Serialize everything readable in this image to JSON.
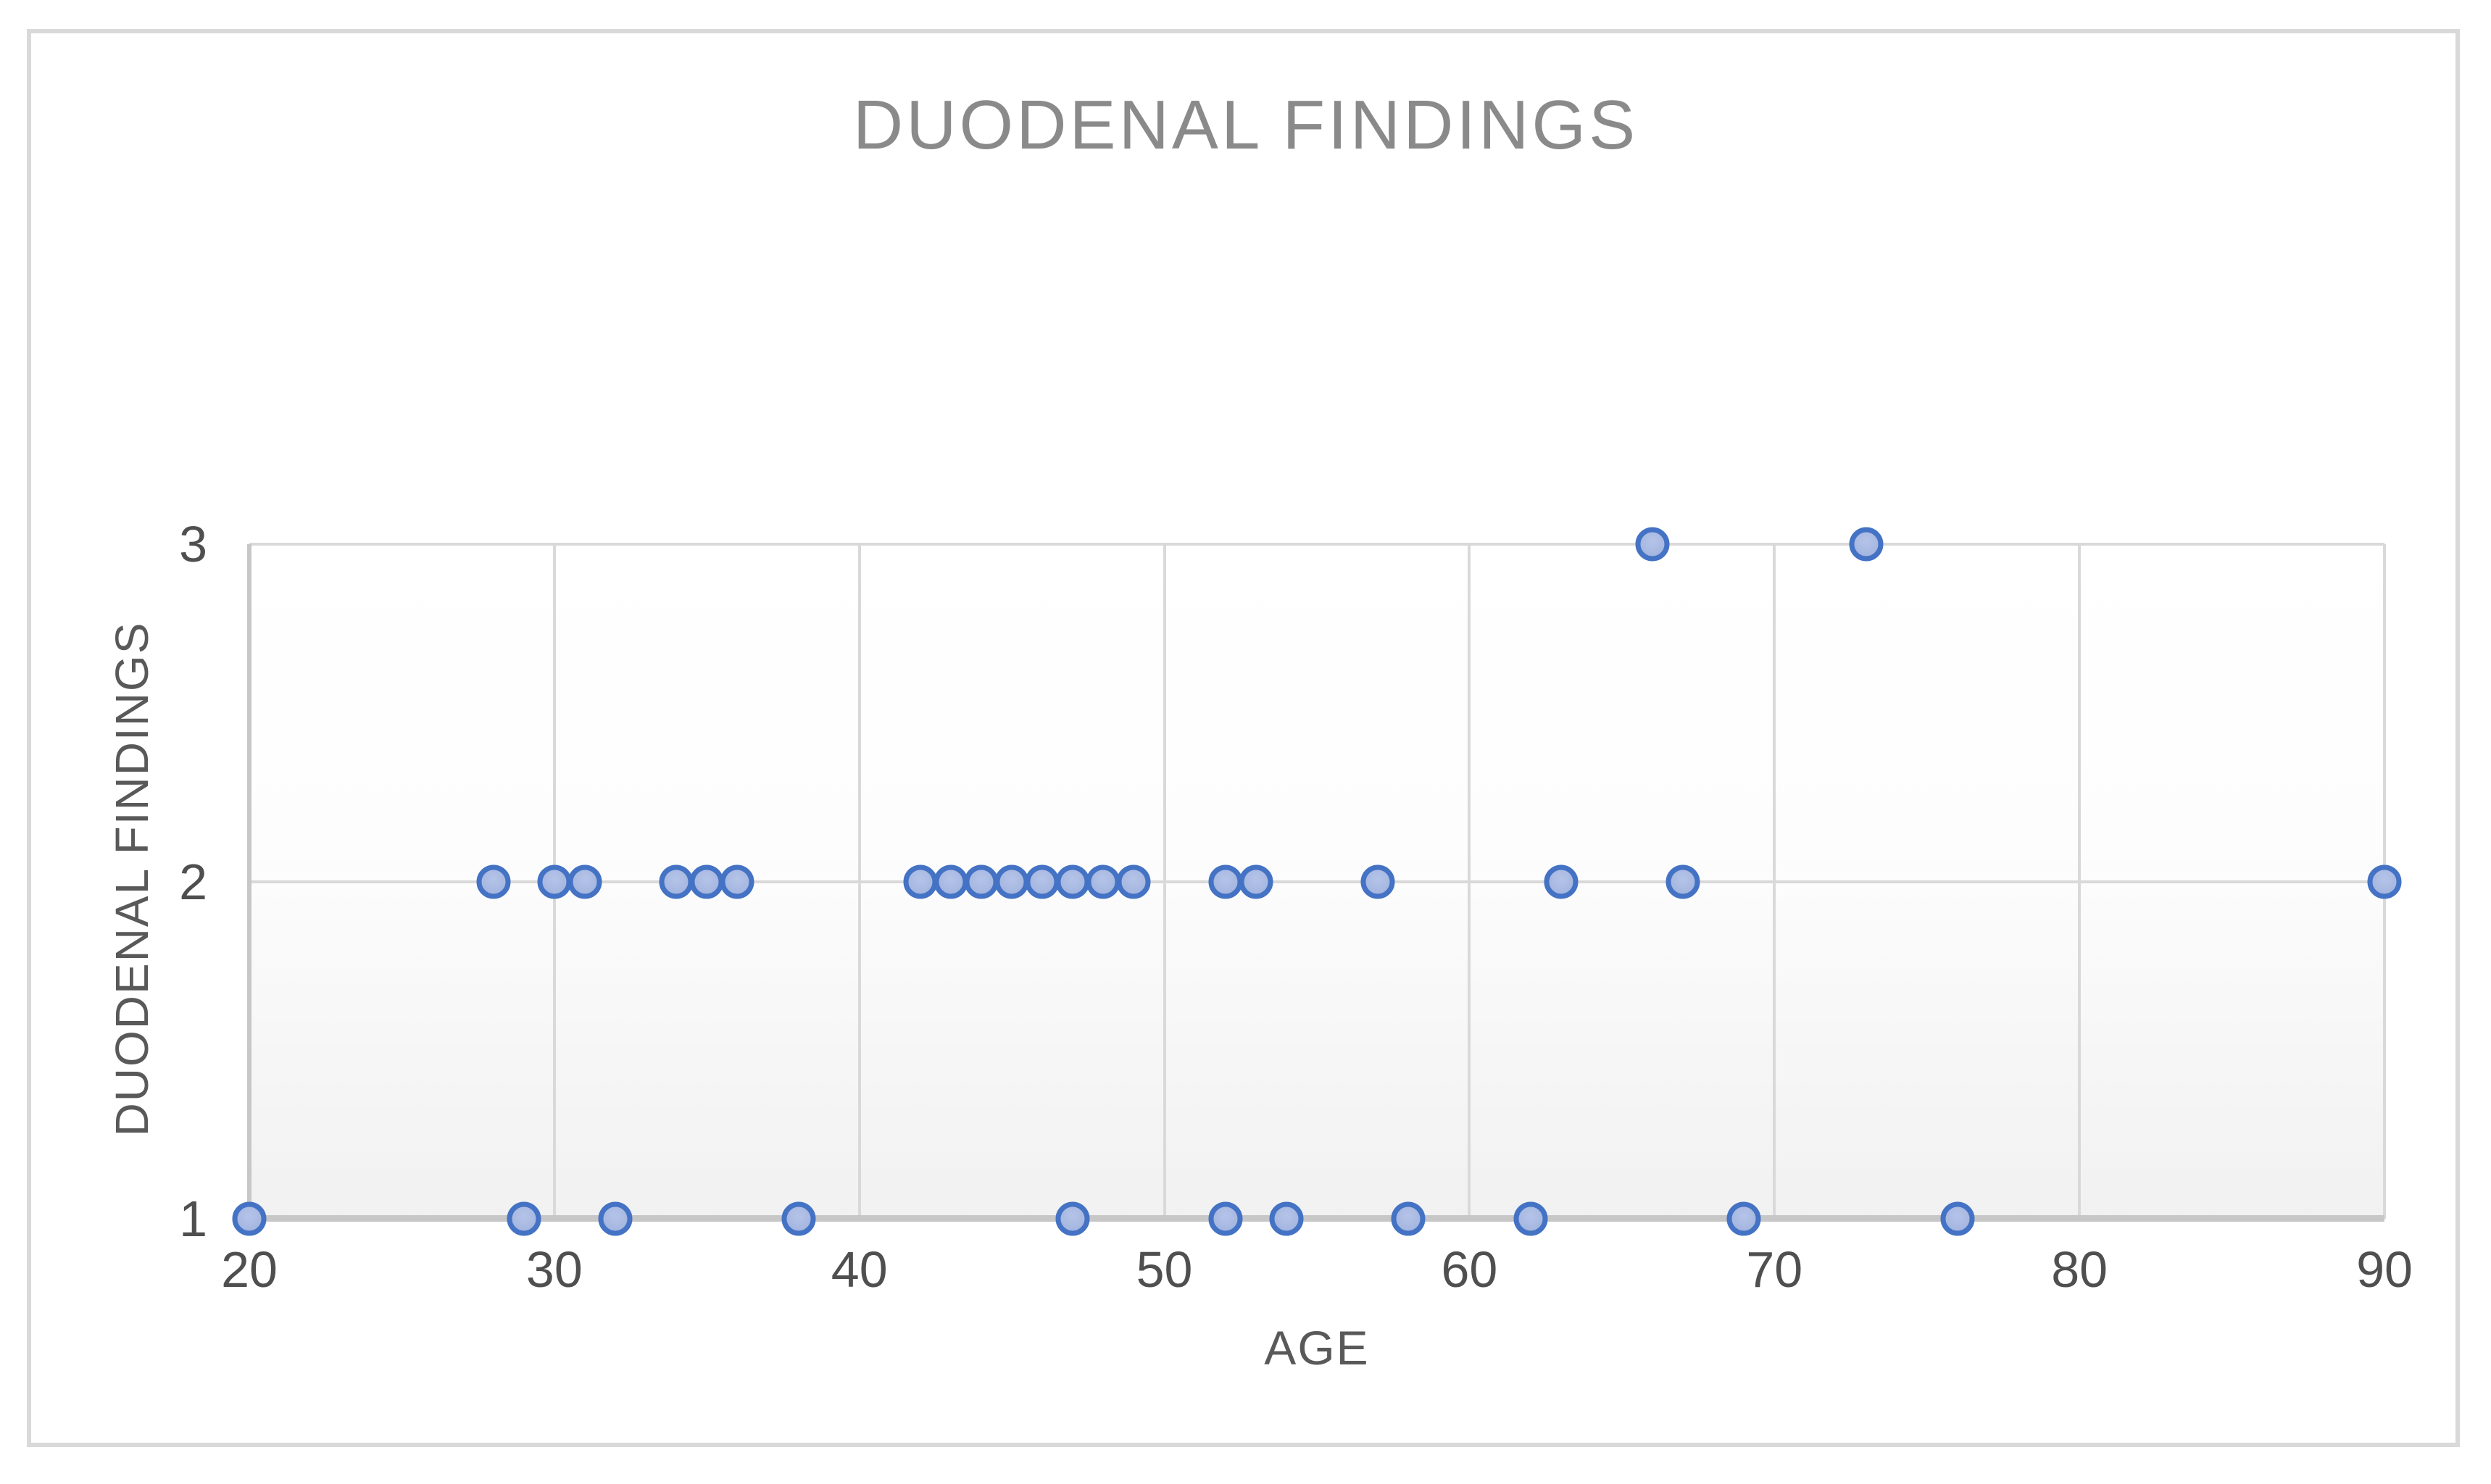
{
  "figure": {
    "background": "#FFFFFF",
    "border_color": "#D9D9D9"
  },
  "chart_data": {
    "type": "scatter",
    "title": "DUODENAL FINDINGS",
    "xlabel": "AGE",
    "ylabel": "DUODENAL FINDINGS",
    "xlim": [
      20,
      90
    ],
    "ylim": [
      1,
      3
    ],
    "x_ticks": [
      20,
      30,
      40,
      50,
      60,
      70,
      80,
      90
    ],
    "y_ticks": [
      3,
      2,
      1
    ],
    "grid": true,
    "legend_position": "none",
    "colors": {
      "marker_fill": "#A9BAE2",
      "marker_stroke": "#4472C4",
      "gridline": "#D9D9D9",
      "axis_line": "#C7C7C7",
      "tick_label": "#4F4F4F",
      "axis_title": "#595959",
      "chart_title": "#8A8A8A"
    },
    "series": [
      {
        "name": "DUODENAL FINDINGS",
        "points": [
          [
            20,
            1
          ],
          [
            29,
            1
          ],
          [
            32,
            1
          ],
          [
            38,
            1
          ],
          [
            47,
            1
          ],
          [
            52,
            1
          ],
          [
            54,
            1
          ],
          [
            58,
            1
          ],
          [
            62,
            1
          ],
          [
            69,
            1
          ],
          [
            76,
            1
          ],
          [
            28,
            2
          ],
          [
            30,
            2
          ],
          [
            31,
            2
          ],
          [
            34,
            2
          ],
          [
            35,
            2
          ],
          [
            36,
            2
          ],
          [
            42,
            2
          ],
          [
            43,
            2
          ],
          [
            44,
            2
          ],
          [
            45,
            2
          ],
          [
            46,
            2
          ],
          [
            47,
            2
          ],
          [
            48,
            2
          ],
          [
            49,
            2
          ],
          [
            52,
            2
          ],
          [
            53,
            2
          ],
          [
            57,
            2
          ],
          [
            63,
            2
          ],
          [
            67,
            2
          ],
          [
            90,
            2
          ],
          [
            66,
            3
          ],
          [
            73,
            3
          ]
        ]
      }
    ]
  }
}
